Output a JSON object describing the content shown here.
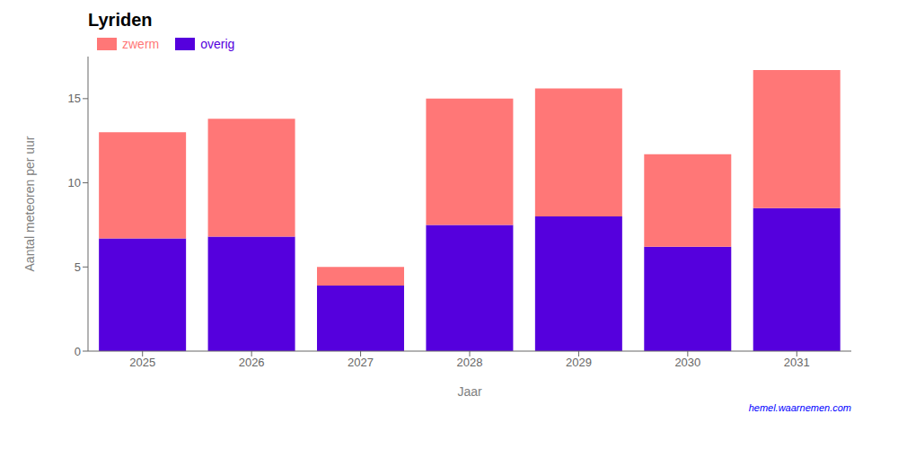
{
  "chart_data": {
    "type": "bar",
    "title": "Lyriden",
    "xlabel": "Jaar",
    "ylabel": "Aantal meteoren per uur",
    "categories": [
      "2025",
      "2026",
      "2027",
      "2028",
      "2029",
      "2030",
      "2031"
    ],
    "series": [
      {
        "name": "overig",
        "color": "#5500dd",
        "values": [
          6.7,
          6.8,
          3.9,
          7.5,
          8.0,
          6.2,
          8.5
        ]
      },
      {
        "name": "zwerm",
        "color": "#ff7777",
        "values": [
          6.3,
          7.0,
          1.1,
          7.5,
          7.6,
          5.5,
          8.2
        ]
      }
    ],
    "stacked": true,
    "ylim": [
      0,
      17.5
    ],
    "yticks": [
      0,
      5,
      10,
      15
    ],
    "grid": false,
    "legend": "upper left",
    "annotations": [
      "hemel.waarnemen.com"
    ]
  }
}
